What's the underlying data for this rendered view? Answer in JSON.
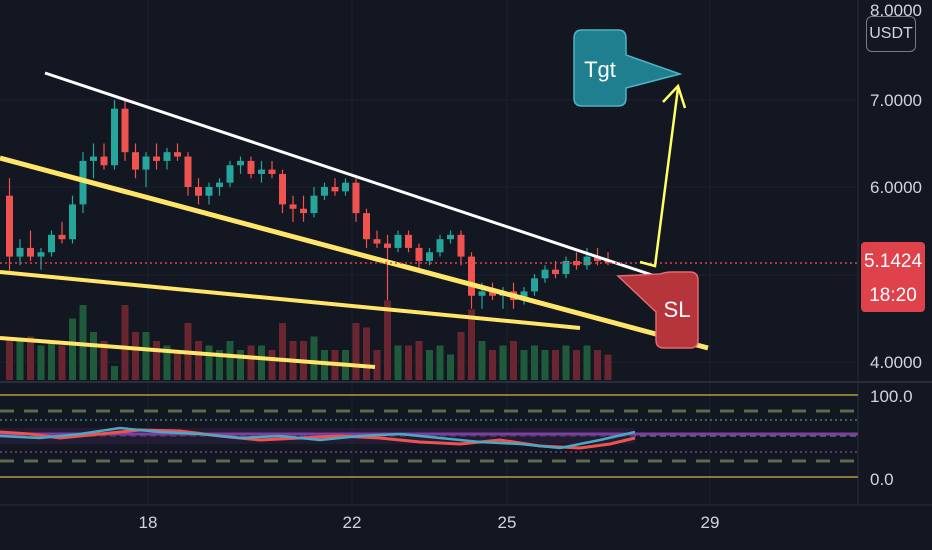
{
  "chart_data": {
    "type": "candlestick",
    "symbol_currency": "USDT",
    "y_axis": {
      "ticks": [
        4.0,
        6.0,
        7.0,
        8.0
      ],
      "tick_labels": [
        "4.0000",
        "6.0000",
        "7.0000",
        "8.0000"
      ],
      "range": [
        3.8,
        8.2
      ]
    },
    "x_axis": {
      "ticks": [
        "18",
        "22",
        "25",
        "29"
      ]
    },
    "last_price": {
      "value": 5.1424,
      "label": "5.1424",
      "countdown": "18:20",
      "color": "#e0424b"
    },
    "candles": [
      {
        "o": 5.9,
        "h": 6.1,
        "l": 5.0,
        "c": 5.2
      },
      {
        "o": 5.2,
        "h": 5.4,
        "l": 5.1,
        "c": 5.3
      },
      {
        "o": 5.3,
        "h": 5.5,
        "l": 5.15,
        "c": 5.2
      },
      {
        "o": 5.2,
        "h": 5.3,
        "l": 5.05,
        "c": 5.25
      },
      {
        "o": 5.25,
        "h": 5.5,
        "l": 5.2,
        "c": 5.45
      },
      {
        "o": 5.45,
        "h": 5.6,
        "l": 5.35,
        "c": 5.4
      },
      {
        "o": 5.4,
        "h": 5.9,
        "l": 5.35,
        "c": 5.8
      },
      {
        "o": 5.8,
        "h": 6.4,
        "l": 5.7,
        "c": 6.3
      },
      {
        "o": 6.3,
        "h": 6.5,
        "l": 6.1,
        "c": 6.35
      },
      {
        "o": 6.35,
        "h": 6.5,
        "l": 6.2,
        "c": 6.25
      },
      {
        "o": 6.25,
        "h": 7.0,
        "l": 6.2,
        "c": 6.9
      },
      {
        "o": 6.9,
        "h": 7.0,
        "l": 6.3,
        "c": 6.4
      },
      {
        "o": 6.4,
        "h": 6.5,
        "l": 6.1,
        "c": 6.2
      },
      {
        "o": 6.2,
        "h": 6.4,
        "l": 6.0,
        "c": 6.35
      },
      {
        "o": 6.35,
        "h": 6.5,
        "l": 6.2,
        "c": 6.3
      },
      {
        "o": 6.3,
        "h": 6.45,
        "l": 6.2,
        "c": 6.4
      },
      {
        "o": 6.4,
        "h": 6.5,
        "l": 6.3,
        "c": 6.35
      },
      {
        "o": 6.35,
        "h": 6.4,
        "l": 5.9,
        "c": 6.0
      },
      {
        "o": 6.0,
        "h": 6.1,
        "l": 5.8,
        "c": 5.9
      },
      {
        "o": 5.9,
        "h": 6.05,
        "l": 5.8,
        "c": 6.0
      },
      {
        "o": 6.0,
        "h": 6.1,
        "l": 5.9,
        "c": 6.05
      },
      {
        "o": 6.05,
        "h": 6.3,
        "l": 6.0,
        "c": 6.25
      },
      {
        "o": 6.25,
        "h": 6.35,
        "l": 6.15,
        "c": 6.3
      },
      {
        "o": 6.3,
        "h": 6.35,
        "l": 6.1,
        "c": 6.15
      },
      {
        "o": 6.15,
        "h": 6.3,
        "l": 6.05,
        "c": 6.2
      },
      {
        "o": 6.2,
        "h": 6.3,
        "l": 6.1,
        "c": 6.15
      },
      {
        "o": 6.15,
        "h": 6.2,
        "l": 5.7,
        "c": 5.8
      },
      {
        "o": 5.8,
        "h": 5.9,
        "l": 5.6,
        "c": 5.75
      },
      {
        "o": 5.75,
        "h": 5.9,
        "l": 5.6,
        "c": 5.7
      },
      {
        "o": 5.7,
        "h": 6.0,
        "l": 5.65,
        "c": 5.9
      },
      {
        "o": 5.9,
        "h": 6.05,
        "l": 5.85,
        "c": 6.0
      },
      {
        "o": 6.0,
        "h": 6.1,
        "l": 5.9,
        "c": 5.95
      },
      {
        "o": 5.95,
        "h": 6.1,
        "l": 5.9,
        "c": 6.05
      },
      {
        "o": 6.05,
        "h": 6.1,
        "l": 5.6,
        "c": 5.7
      },
      {
        "o": 5.7,
        "h": 5.75,
        "l": 5.3,
        "c": 5.4
      },
      {
        "o": 5.4,
        "h": 5.5,
        "l": 5.3,
        "c": 5.35
      },
      {
        "o": 5.35,
        "h": 5.45,
        "l": 4.7,
        "c": 5.3
      },
      {
        "o": 5.3,
        "h": 5.5,
        "l": 5.25,
        "c": 5.45
      },
      {
        "o": 5.45,
        "h": 5.5,
        "l": 5.25,
        "c": 5.3
      },
      {
        "o": 5.3,
        "h": 5.35,
        "l": 5.05,
        "c": 5.15
      },
      {
        "o": 5.15,
        "h": 5.3,
        "l": 5.1,
        "c": 5.25
      },
      {
        "o": 5.25,
        "h": 5.45,
        "l": 5.2,
        "c": 5.4
      },
      {
        "o": 5.4,
        "h": 5.5,
        "l": 5.35,
        "c": 5.45
      },
      {
        "o": 5.45,
        "h": 5.5,
        "l": 5.1,
        "c": 5.2
      },
      {
        "o": 5.2,
        "h": 5.25,
        "l": 4.6,
        "c": 4.75
      },
      {
        "o": 4.75,
        "h": 4.9,
        "l": 4.6,
        "c": 4.8
      },
      {
        "o": 4.8,
        "h": 4.9,
        "l": 4.7,
        "c": 4.75
      },
      {
        "o": 4.75,
        "h": 4.85,
        "l": 4.6,
        "c": 4.8
      },
      {
        "o": 4.8,
        "h": 4.9,
        "l": 4.6,
        "c": 4.7
      },
      {
        "o": 4.7,
        "h": 4.85,
        "l": 4.65,
        "c": 4.8
      },
      {
        "o": 4.8,
        "h": 5.0,
        "l": 4.75,
        "c": 4.95
      },
      {
        "o": 4.95,
        "h": 5.1,
        "l": 4.9,
        "c": 5.05
      },
      {
        "o": 5.05,
        "h": 5.15,
        "l": 4.95,
        "c": 5.0
      },
      {
        "o": 5.0,
        "h": 5.2,
        "l": 4.95,
        "c": 5.15
      },
      {
        "o": 5.15,
        "h": 5.25,
        "l": 5.05,
        "c": 5.1
      },
      {
        "o": 5.1,
        "h": 5.3,
        "l": 5.05,
        "c": 5.2
      },
      {
        "o": 5.2,
        "h": 5.3,
        "l": 5.1,
        "c": 5.15
      },
      {
        "o": 5.15,
        "h": 5.25,
        "l": 5.1,
        "c": 5.14
      }
    ],
    "rsi_panel": {
      "ticks": [
        0.0,
        100.0
      ],
      "tick_labels": [
        "0.0",
        "100.0"
      ]
    },
    "annotations": [
      {
        "label": "Tgt",
        "color": "#1f7f8f"
      },
      {
        "label": "SL",
        "color": "#b5353b"
      }
    ],
    "colors": {
      "up": "#26a69a",
      "down": "#ef5350",
      "trendline_upper": "#ffffff",
      "trendline_support": "#ffe66b",
      "projection": "#ffff66"
    }
  }
}
